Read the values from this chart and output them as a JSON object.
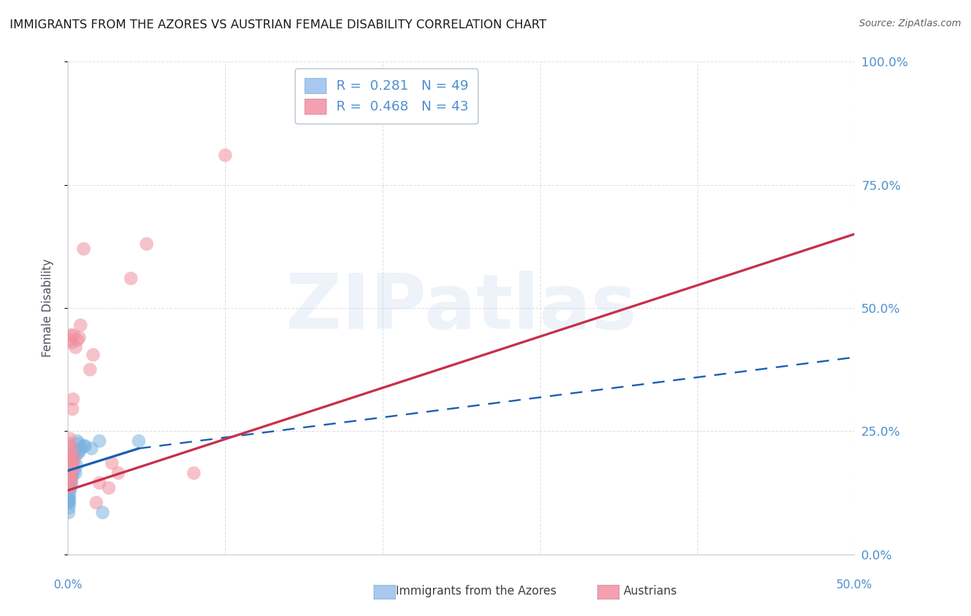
{
  "title": "IMMIGRANTS FROM THE AZORES VS AUSTRIAN FEMALE DISABILITY CORRELATION CHART",
  "source": "Source: ZipAtlas.com",
  "ylabel": "Female Disability",
  "ytick_vals": [
    0,
    25,
    50,
    75,
    100
  ],
  "xrange": [
    0,
    50
  ],
  "yrange": [
    0,
    100
  ],
  "watermark_zip": "ZIP",
  "watermark_atlas": "atlas",
  "legend_color1": "#a8c8f0",
  "legend_color2": "#f4a0b0",
  "legend_text1": "R =  0.281   N = 49",
  "legend_text2": "R =  0.468   N = 43",
  "scatter_blue": [
    [
      0.05,
      15.5
    ],
    [
      0.1,
      14.0
    ],
    [
      0.15,
      16.5
    ],
    [
      0.2,
      17.0
    ],
    [
      0.25,
      18.0
    ],
    [
      0.05,
      13.0
    ],
    [
      0.08,
      11.5
    ],
    [
      0.12,
      16.0
    ],
    [
      0.18,
      14.5
    ],
    [
      0.22,
      17.5
    ],
    [
      0.3,
      19.0
    ],
    [
      0.08,
      12.0
    ],
    [
      0.04,
      11.0
    ],
    [
      0.2,
      15.5
    ],
    [
      0.12,
      13.5
    ],
    [
      0.07,
      18.5
    ],
    [
      0.16,
      22.0
    ],
    [
      0.24,
      19.5
    ],
    [
      0.35,
      21.0
    ],
    [
      0.5,
      20.5
    ],
    [
      0.6,
      23.0
    ],
    [
      0.7,
      22.5
    ],
    [
      0.8,
      21.5
    ],
    [
      1.0,
      22.0
    ],
    [
      0.03,
      10.5
    ],
    [
      0.08,
      16.5
    ],
    [
      0.12,
      15.0
    ],
    [
      0.17,
      17.5
    ],
    [
      0.22,
      14.0
    ],
    [
      0.28,
      16.0
    ],
    [
      0.32,
      18.5
    ],
    [
      0.38,
      17.0
    ],
    [
      0.42,
      19.5
    ],
    [
      0.48,
      16.5
    ],
    [
      0.55,
      18.0
    ],
    [
      0.65,
      20.5
    ],
    [
      0.75,
      21.0
    ],
    [
      1.1,
      22.0
    ],
    [
      1.5,
      21.5
    ],
    [
      0.04,
      8.5
    ],
    [
      0.07,
      9.5
    ],
    [
      0.06,
      11.0
    ],
    [
      0.1,
      10.5
    ],
    [
      2.0,
      23.0
    ],
    [
      2.2,
      8.5
    ],
    [
      0.14,
      13.0
    ],
    [
      0.19,
      15.5
    ],
    [
      0.23,
      16.0
    ],
    [
      4.5,
      23.0
    ]
  ],
  "scatter_pink": [
    [
      0.08,
      16.5
    ],
    [
      0.12,
      15.5
    ],
    [
      0.2,
      18.5
    ],
    [
      0.28,
      17.5
    ],
    [
      0.4,
      19.5
    ],
    [
      0.04,
      14.5
    ],
    [
      0.08,
      22.5
    ],
    [
      0.12,
      23.5
    ],
    [
      0.16,
      20.5
    ],
    [
      0.24,
      21.5
    ],
    [
      0.32,
      18.0
    ],
    [
      0.08,
      17.5
    ],
    [
      0.04,
      16.5
    ],
    [
      0.2,
      19.0
    ],
    [
      0.12,
      20.0
    ],
    [
      0.08,
      43.5
    ],
    [
      0.16,
      44.5
    ],
    [
      0.24,
      43.0
    ],
    [
      0.36,
      44.5
    ],
    [
      0.48,
      42.0
    ],
    [
      0.6,
      43.5
    ],
    [
      0.72,
      44.0
    ],
    [
      0.8,
      46.5
    ],
    [
      1.0,
      62.0
    ],
    [
      0.04,
      13.5
    ],
    [
      0.08,
      15.5
    ],
    [
      0.12,
      17.5
    ],
    [
      0.16,
      18.5
    ],
    [
      0.2,
      16.5
    ],
    [
      0.24,
      15.0
    ],
    [
      2.6,
      13.5
    ],
    [
      2.8,
      18.5
    ],
    [
      3.2,
      16.5
    ],
    [
      8.0,
      16.5
    ],
    [
      10.0,
      81.0
    ],
    [
      4.0,
      56.0
    ],
    [
      5.0,
      63.0
    ],
    [
      1.4,
      37.5
    ],
    [
      1.6,
      40.5
    ],
    [
      0.28,
      29.5
    ],
    [
      0.32,
      31.5
    ],
    [
      1.8,
      10.5
    ],
    [
      2.0,
      14.5
    ]
  ],
  "blue_solid_line": [
    [
      0.0,
      17.0
    ],
    [
      4.5,
      21.5
    ]
  ],
  "blue_dashed_line": [
    [
      4.5,
      21.5
    ],
    [
      50.0,
      40.0
    ]
  ],
  "pink_solid_line": [
    [
      0.0,
      13.0
    ],
    [
      50.0,
      65.0
    ]
  ],
  "dot_color_blue": "#7ab3e0",
  "dot_color_pink": "#f090a0",
  "line_color_blue": "#1a5fb4",
  "line_color_pink": "#c8304a",
  "background_color": "#ffffff",
  "grid_color": "#d8d8e0",
  "title_color": "#1a1a1a",
  "source_color": "#606060",
  "axis_label_color": "#5090d0",
  "ylabel_color": "#505060",
  "xtick_labels": [
    "0.0%",
    "50.0%"
  ],
  "xtick_positions": [
    0,
    50
  ]
}
